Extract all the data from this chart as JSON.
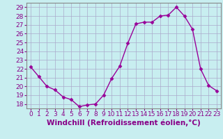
{
  "x": [
    0,
    1,
    2,
    3,
    4,
    5,
    6,
    7,
    8,
    9,
    10,
    11,
    12,
    13,
    14,
    15,
    16,
    17,
    18,
    19,
    20,
    21,
    22,
    23
  ],
  "y": [
    22.2,
    21.1,
    20.0,
    19.6,
    18.8,
    18.5,
    17.7,
    17.9,
    18.0,
    19.0,
    20.9,
    22.3,
    24.9,
    27.1,
    27.3,
    27.3,
    28.0,
    28.1,
    29.0,
    28.0,
    26.5,
    22.0,
    20.1,
    19.5
  ],
  "line_color": "#990099",
  "marker": "D",
  "markersize": 2.5,
  "bg_color": "#c8eef0",
  "grid_color": "#aaaacc",
  "xlabel": "Windchill (Refroidissement éolien,°C)",
  "ylim": [
    17.5,
    29.5
  ],
  "yticks": [
    18,
    19,
    20,
    21,
    22,
    23,
    24,
    25,
    26,
    27,
    28,
    29
  ],
  "xticks": [
    0,
    1,
    2,
    3,
    4,
    5,
    6,
    7,
    8,
    9,
    10,
    11,
    12,
    13,
    14,
    15,
    16,
    17,
    18,
    19,
    20,
    21,
    22,
    23
  ],
  "xlabel_fontsize": 7.5,
  "tick_fontsize": 6.5,
  "linewidth": 1.0,
  "text_color": "#880088"
}
